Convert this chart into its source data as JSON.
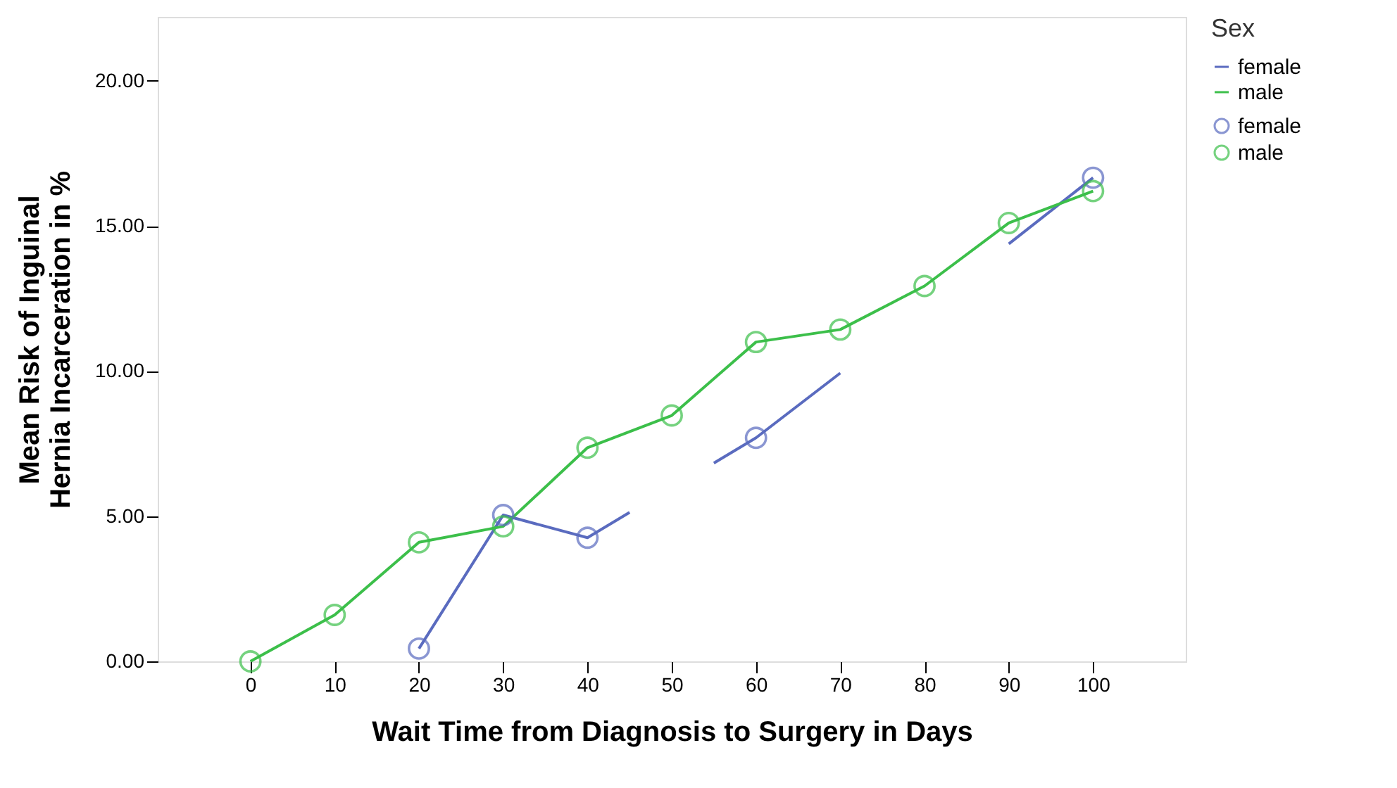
{
  "chart_data": {
    "type": "line",
    "xlabel": "Wait Time from Diagnosis to Surgery in Days",
    "ylabel": "Mean Risk of Inguinal Hernia Incarceration in %",
    "legend_title": "Sex",
    "xlim": [
      -11,
      111
    ],
    "xticks": [
      0,
      10,
      20,
      30,
      40,
      50,
      60,
      70,
      80,
      90,
      100
    ],
    "ylim": [
      0,
      22.2
    ],
    "yticks": [
      {
        "value": 0,
        "label": "0.00"
      },
      {
        "value": 5,
        "label": "5.00"
      },
      {
        "value": 10,
        "label": "10.00"
      },
      {
        "value": 15,
        "label": "15.00"
      },
      {
        "value": 20,
        "label": "20.00"
      }
    ],
    "grid": false,
    "legend": "top right",
    "series": [
      {
        "name": "female",
        "color": "#5a6bbf",
        "x": [
          20,
          30,
          40,
          45,
          50,
          55,
          60,
          70,
          80,
          90,
          100
        ],
        "values": [
          0.44,
          5.04,
          4.26,
          5.13,
          null,
          6.83,
          7.7,
          9.93,
          null,
          14.38,
          16.66
        ]
      },
      {
        "name": "male",
        "color": "#3cbf4a",
        "x": [
          0,
          10,
          20,
          30,
          40,
          50,
          60,
          70,
          80,
          90,
          100
        ],
        "values": [
          0,
          1.6,
          4.1,
          4.65,
          7.36,
          8.47,
          11.0,
          11.43,
          12.93,
          15.1,
          16.2
        ]
      },
      {
        "name": "female",
        "type": "scatter",
        "marker": "circle",
        "color": "#5a6bbf",
        "x": [
          20,
          30,
          40,
          60,
          100
        ],
        "values": [
          0.44,
          5.04,
          4.26,
          7.7,
          16.66
        ]
      },
      {
        "name": "male",
        "type": "scatter",
        "marker": "circle",
        "color": "#3cbf4a",
        "x": [
          0,
          10,
          20,
          30,
          40,
          50,
          60,
          70,
          80,
          90,
          100
        ],
        "values": [
          0,
          1.6,
          4.1,
          4.65,
          7.36,
          8.47,
          11.0,
          11.43,
          12.93,
          15.1,
          16.2
        ]
      }
    ]
  }
}
